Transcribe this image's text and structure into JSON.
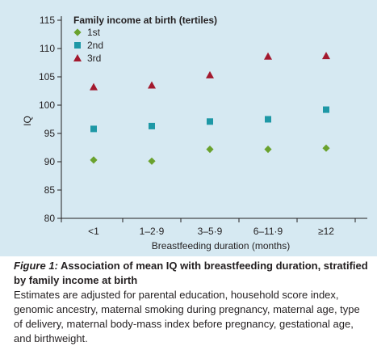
{
  "colors": {
    "panel_background": "#d6e9f2",
    "axis": "#231f20",
    "series_1st": "#6aa22e",
    "series_2nd": "#1e98a6",
    "series_3rd": "#a3192e"
  },
  "chart_data": {
    "type": "scatter",
    "categories": [
      "<1",
      "1–2·9",
      "3–5·9",
      "6–11·9",
      "≥12"
    ],
    "series": [
      {
        "name": "1st",
        "marker": "diamond",
        "values": [
          90.3,
          90.1,
          92.2,
          92.2,
          92.4
        ]
      },
      {
        "name": "2nd",
        "marker": "square",
        "values": [
          95.8,
          96.3,
          97.1,
          97.5,
          99.2
        ]
      },
      {
        "name": "3rd",
        "marker": "triangle",
        "values": [
          103.2,
          103.5,
          105.3,
          108.6,
          108.7
        ]
      }
    ],
    "legend_title": "Family income at birth (tertiles)",
    "legend_position": "top-left",
    "xlabel": "Breastfeeding duration (months)",
    "ylabel": "IQ",
    "ylim": [
      80,
      115
    ],
    "yticks": [
      "115",
      "110",
      "105",
      "100",
      "95",
      "90",
      "85",
      "80"
    ],
    "grid": false
  },
  "caption": {
    "figure_label": "Figure 1:",
    "title": " Association of mean IQ with breastfeeding duration, stratified by family income at birth",
    "body": "Estimates are adjusted for parental education, household score index, genomic ancestry, maternal smoking during pregnancy, maternal age, type of delivery, maternal body-mass index before pregnancy, gestational age, and birthweight."
  }
}
